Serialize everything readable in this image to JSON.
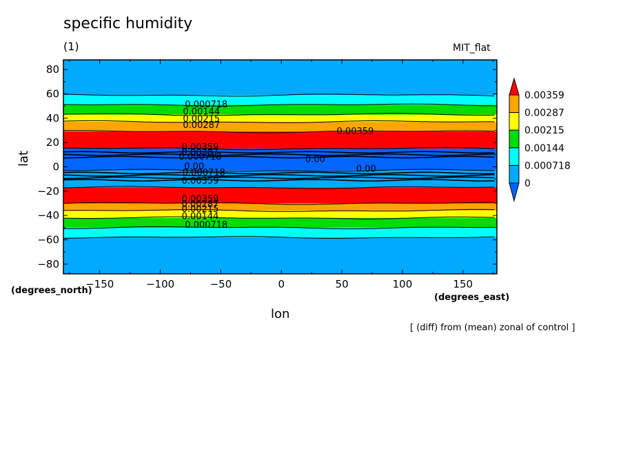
{
  "header": {
    "title": "specific humidity",
    "subtitle": "(1)",
    "model": "MIT_flat",
    "footnote": "[ (diff) from (mean) zonal of control ]"
  },
  "chart_data": {
    "type": "heatmap",
    "title": "specific humidity",
    "xlabel": "lon",
    "ylabel": "lat",
    "xunits": "(degrees_east)",
    "yunits": "(degrees_north)",
    "xlim": [
      -180,
      178
    ],
    "ylim": [
      -88,
      88
    ],
    "xticks": [
      -150,
      -100,
      -50,
      0,
      50,
      100,
      150
    ],
    "yticks": [
      -80,
      -60,
      -40,
      -20,
      0,
      20,
      40,
      60,
      80
    ],
    "levels": [
      0,
      0.000718,
      0.00144,
      0.00215,
      0.00287,
      0.00359
    ],
    "colorbar": {
      "labels": [
        "0.00359",
        "0.00287",
        "0.00215",
        "0.00144",
        "0.000718",
        "0"
      ],
      "colors": [
        "#ff0000",
        "#ffa500",
        "#ffff00",
        "#00dd00",
        "#00ffff",
        "#00aaff",
        "#0066ff"
      ]
    },
    "bands_by_latitude": [
      {
        "lat_range": [
          59,
          88
        ],
        "color": "#00aaff"
      },
      {
        "lat_range": [
          51,
          59
        ],
        "color": "#00ffff"
      },
      {
        "lat_range": [
          43,
          51
        ],
        "color": "#00dd00"
      },
      {
        "lat_range": [
          37,
          43
        ],
        "color": "#ffff00"
      },
      {
        "lat_range": [
          29,
          37
        ],
        "color": "#ffa500"
      },
      {
        "lat_range": [
          15,
          29
        ],
        "color": "#ff0000"
      },
      {
        "lat_range": [
          -3,
          15
        ],
        "color": "#0066ff"
      },
      {
        "lat_range": [
          -17,
          -3
        ],
        "color": "#00aaff"
      },
      {
        "lat_range": [
          -30,
          -17
        ],
        "color": "#ff0000"
      },
      {
        "lat_range": [
          -36,
          -30
        ],
        "color": "#ffa500"
      },
      {
        "lat_range": [
          -42,
          -36
        ],
        "color": "#ffff00"
      },
      {
        "lat_range": [
          -50,
          -42
        ],
        "color": "#00dd00"
      },
      {
        "lat_range": [
          -58,
          -50
        ],
        "color": "#00ffff"
      },
      {
        "lat_range": [
          -88,
          -58
        ],
        "color": "#00aaff"
      }
    ],
    "contour_labels": [
      {
        "text": "0.000718",
        "lon": -62,
        "lat": 49
      },
      {
        "text": "0.00144",
        "lon": -66,
        "lat": 43
      },
      {
        "text": "0.00215",
        "lon": -66,
        "lat": 37
      },
      {
        "text": "0.00287",
        "lon": -66,
        "lat": 32
      },
      {
        "text": "0.00359",
        "lon": 61,
        "lat": 27
      },
      {
        "text": "0.00359",
        "lon": -67,
        "lat": 14
      },
      {
        "text": "0.00287",
        "lon": -67,
        "lat": 10
      },
      {
        "text": "0.000718",
        "lon": -67,
        "lat": 6
      },
      {
        "text": "0.00",
        "lon": 28,
        "lat": 4
      },
      {
        "text": "0.00",
        "lon": -72,
        "lat": -2
      },
      {
        "text": "0.00",
        "lon": 70,
        "lat": -4
      },
      {
        "text": "0.000718",
        "lon": -64,
        "lat": -7
      },
      {
        "text": "0.00359",
        "lon": -67,
        "lat": -14
      },
      {
        "text": "0.00359",
        "lon": -67,
        "lat": -29
      },
      {
        "text": "0.00287",
        "lon": -67,
        "lat": -33
      },
      {
        "text": "0.00215",
        "lon": -67,
        "lat": -37
      },
      {
        "text": "0.00144",
        "lon": -67,
        "lat": -43
      },
      {
        "text": "0.000718",
        "lon": -62,
        "lat": -50
      }
    ]
  }
}
